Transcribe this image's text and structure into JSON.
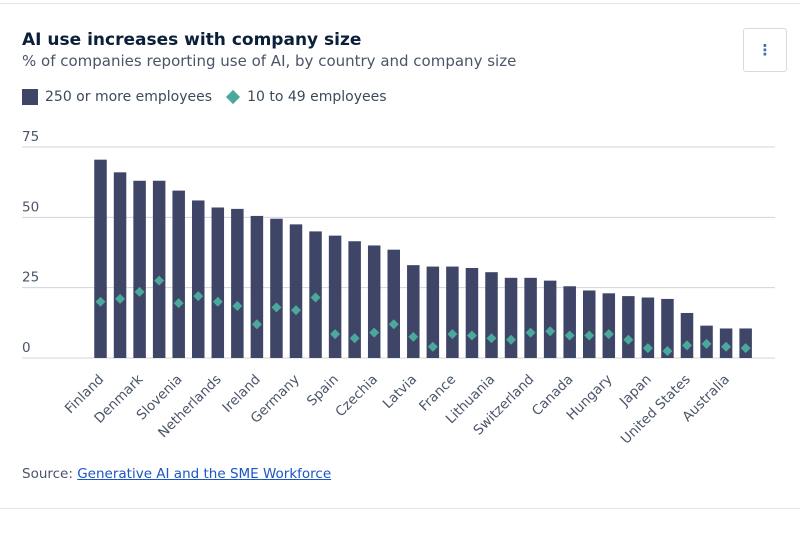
{
  "header": {
    "title": "AI use increases with company size",
    "subtitle": "% of companies reporting use of AI, by country and company size",
    "menu_label": "⋮"
  },
  "legend": {
    "series_large": "250 or more employees",
    "series_small": "10 to 49 employees"
  },
  "source": {
    "prefix": "Source: ",
    "link_text": "Generative AI and the SME Workforce"
  },
  "colors": {
    "bar": "#3f4567",
    "diamond": "#4aa99a",
    "grid": "#d0d4da",
    "axis_text": "#4a5568"
  },
  "chart_data": {
    "type": "bar",
    "title": "AI use increases with company size",
    "ylim": [
      0,
      75
    ],
    "yticks": [
      0,
      25,
      50,
      75
    ],
    "grid": true,
    "legend_position": "top-left",
    "categories": [
      "Finland",
      "",
      "Denmark",
      "",
      "Slovenia",
      "",
      "Netherlands",
      "",
      "Ireland",
      "",
      "Germany",
      "",
      "Spain",
      "",
      "Czechia",
      "",
      "Latvia",
      "",
      "France",
      "",
      "Lithuania",
      "",
      "Switzerland",
      "",
      "Canada",
      "",
      "Hungary",
      "",
      "Japan",
      "",
      "United States",
      "",
      "Australia",
      ""
    ],
    "series": [
      {
        "name": "250 or more employees",
        "kind": "bar",
        "values": [
          70.5,
          66,
          63,
          63,
          59.5,
          56,
          53.5,
          53,
          50.5,
          49.5,
          47.5,
          45,
          43.5,
          41.5,
          40,
          38.5,
          33,
          32.5,
          32.5,
          32,
          30.5,
          28.5,
          28.5,
          27.5,
          25.5,
          24,
          23,
          22,
          21.5,
          21,
          16,
          11.5,
          10.5,
          10.5
        ]
      },
      {
        "name": "10 to 49 employees",
        "kind": "diamond",
        "values": [
          20,
          21,
          23.5,
          27.5,
          19.5,
          22,
          20,
          18.5,
          12,
          18,
          17,
          21.5,
          8.5,
          7,
          9,
          12,
          7.5,
          4,
          8.5,
          8,
          7,
          6.5,
          9,
          9.5,
          8,
          8,
          8.5,
          6.5,
          3.5,
          2.5,
          4.5,
          5,
          4,
          3.5
        ]
      }
    ]
  }
}
